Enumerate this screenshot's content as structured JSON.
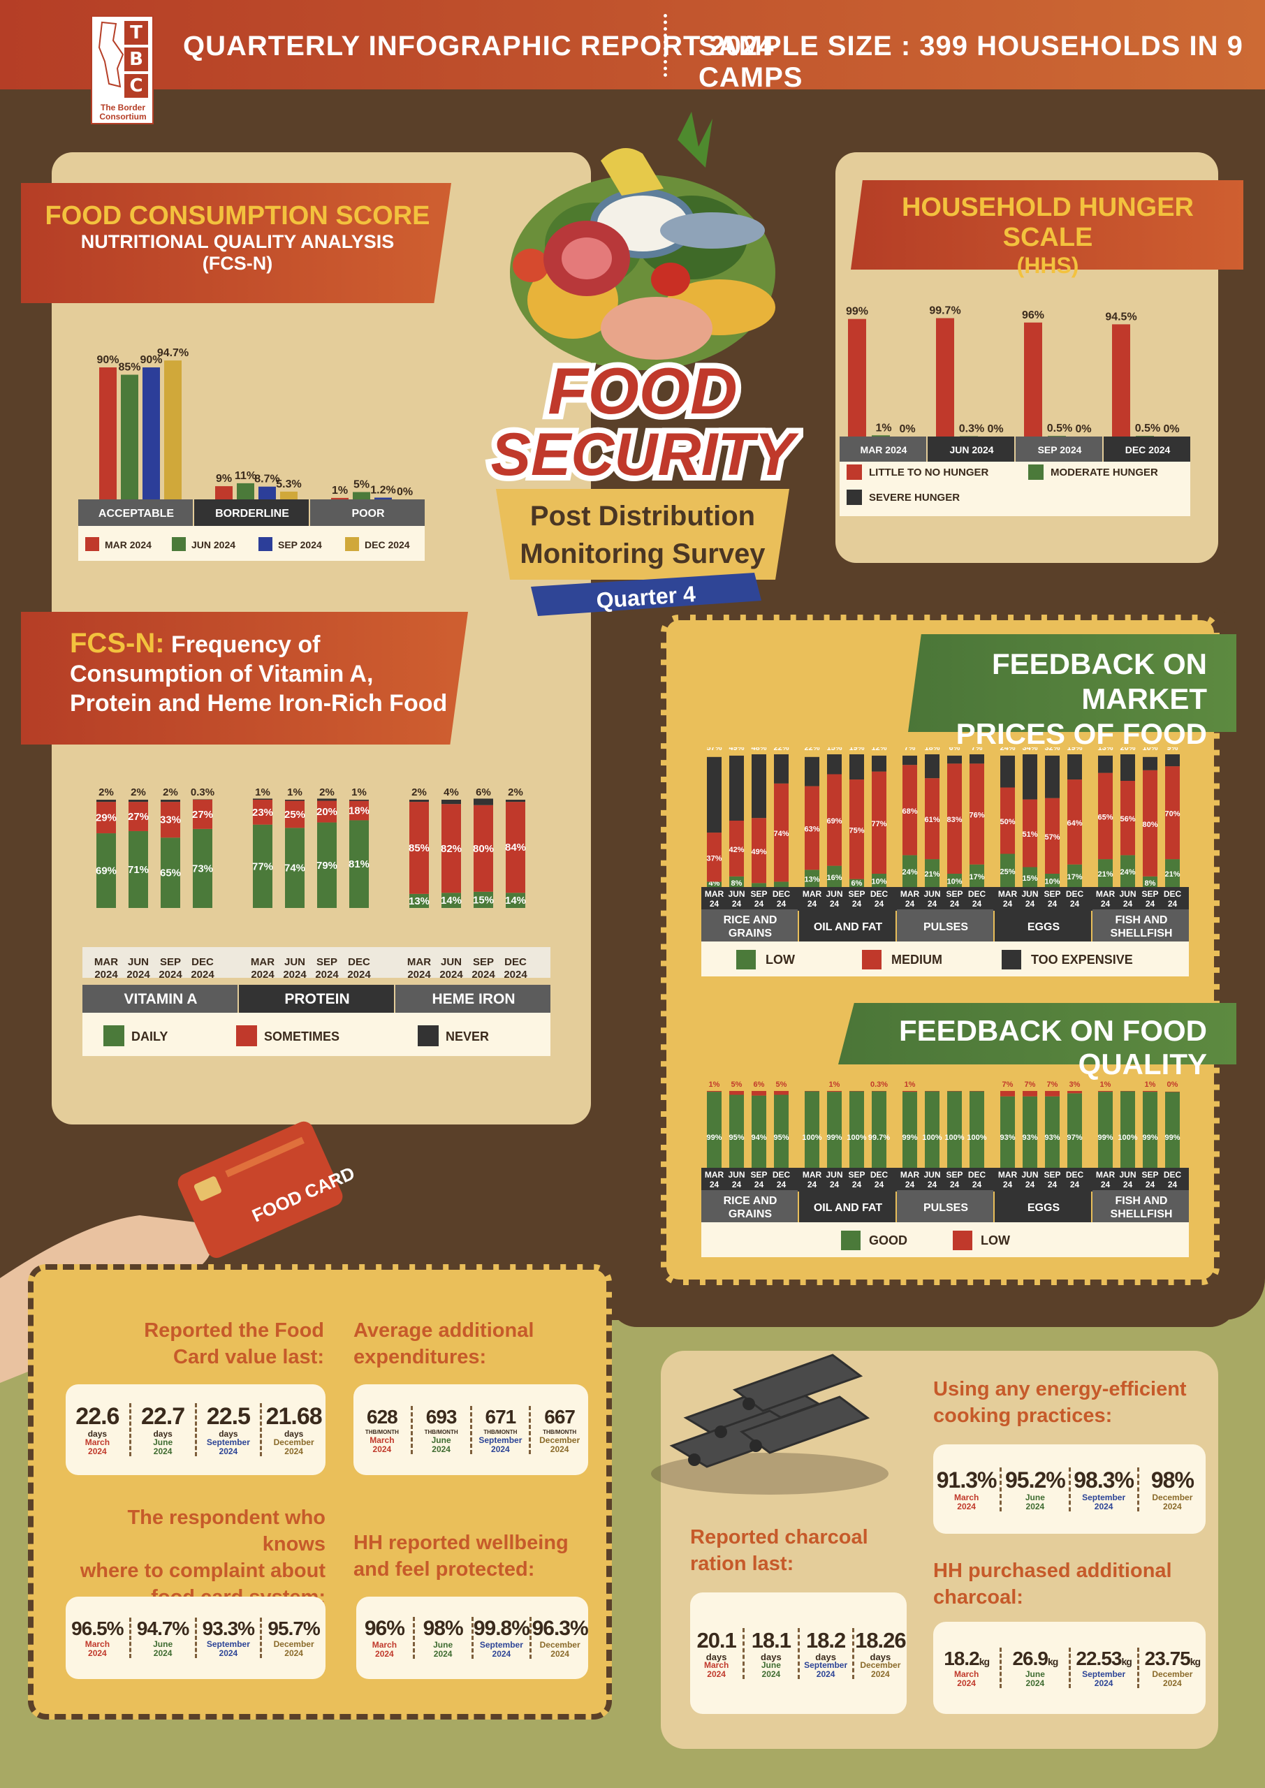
{
  "header": {
    "title": "QUARTERLY INFOGRAPHIC REPORT 2024",
    "sample": "SAMPLE SIZE : 399 HOUSEHOLDS IN 9 CAMPS",
    "logo_letters": [
      "T",
      "B",
      "C"
    ],
    "logo_name": "The Border Consortium"
  },
  "center": {
    "title1": "FOOD",
    "title2": "SECURITY",
    "subtitle1": "Post Distribution",
    "subtitle2": "Monitoring Survey",
    "quarter": "Quarter 4"
  },
  "fcs": {
    "title": "FOOD CONSUMPTION SCORE",
    "sub1": "NUTRITIONAL QUALITY ANALYSIS",
    "sub2": "(FCS-N)"
  },
  "hhs": {
    "title": "HOUSEHOLD HUNGER SCALE",
    "sub": "(HHS)"
  },
  "fcsn": {
    "t1": "FCS-N:",
    "t2": "Frequency of",
    "t3": "Consumption of Vitamin A,",
    "t4": "Protein and Heme Iron-Rich Food"
  },
  "market": {
    "t1": "FEEDBACK ON MARKET",
    "t2": "PRICES OF FOOD"
  },
  "quality": {
    "t1": "FEEDBACK ON FOOD QUALITY"
  },
  "food_card_label": "FOOD CARD",
  "chart_data": [
    {
      "id": "fcs",
      "type": "bar",
      "categories": [
        "ACCEPTABLE",
        "BORDERLINE",
        "POOR"
      ],
      "series": [
        {
          "name": "MAR 2024",
          "color": "#c0392b",
          "values": [
            90,
            9,
            1
          ]
        },
        {
          "name": "JUN 2024",
          "color": "#4b7a3a",
          "values": [
            85,
            11,
            5
          ]
        },
        {
          "name": "SEP 2024",
          "color": "#2c3e99",
          "values": [
            90,
            8.7,
            1.2
          ]
        },
        {
          "name": "DEC 2024",
          "color": "#d0a83a",
          "values": [
            94.7,
            5.3,
            0
          ]
        }
      ],
      "labels": [
        [
          "90%",
          "85%",
          "90%",
          "94.7%"
        ],
        [
          "9%",
          "11%",
          "8.7%",
          "5.3%"
        ],
        [
          "1%",
          "5%",
          "1.2%",
          "0%"
        ]
      ],
      "ylim": [
        0,
        100
      ]
    },
    {
      "id": "hhs",
      "type": "bar",
      "categories": [
        "MAR 2024",
        "JUN 2024",
        "SEP 2024",
        "DEC 2024"
      ],
      "series": [
        {
          "name": "LITTLE TO NO HUNGER",
          "color": "#c0392b",
          "values": [
            99,
            99.7,
            96,
            94.5
          ]
        },
        {
          "name": "MODERATE HUNGER",
          "color": "#4b7a3a",
          "values": [
            1,
            0.3,
            0.5,
            0.5
          ]
        },
        {
          "name": "SEVERE HUNGER",
          "color": "#333333",
          "values": [
            0,
            0,
            0,
            0
          ]
        }
      ],
      "labels": [
        [
          "99%",
          "1%",
          "0%"
        ],
        [
          "99.7%",
          "0.3%",
          "0%"
        ],
        [
          "96%",
          "0.5%",
          "0%"
        ],
        [
          "94.5%",
          "0.5%",
          "0%"
        ]
      ],
      "ylim": [
        0,
        100
      ]
    },
    {
      "id": "fcsn",
      "type": "bar",
      "stacked": true,
      "groups": [
        "VITAMIN A",
        "PROTEIN",
        "HEME IRON"
      ],
      "periods": [
        [
          "MAR",
          "2024"
        ],
        [
          "JUN",
          "2024"
        ],
        [
          "SEP",
          "2024"
        ],
        [
          "DEC",
          "2024"
        ]
      ],
      "series": [
        {
          "name": "DAILY",
          "color": "#4b7a3a"
        },
        {
          "name": "SOMETIMES",
          "color": "#c0392b"
        },
        {
          "name": "NEVER",
          "color": "#333333"
        }
      ],
      "values": [
        [
          [
            69,
            29,
            2
          ],
          [
            71,
            27,
            2
          ],
          [
            65,
            33,
            2
          ],
          [
            73,
            27,
            0.3
          ]
        ],
        [
          [
            77,
            23,
            1
          ],
          [
            74,
            25,
            1
          ],
          [
            79,
            20,
            2
          ],
          [
            81,
            18,
            1
          ]
        ],
        [
          [
            13,
            85,
            2
          ],
          [
            14,
            82,
            4
          ],
          [
            15,
            80,
            6
          ],
          [
            14,
            84,
            2
          ]
        ]
      ],
      "labels": [
        [
          [
            "69%",
            "29%",
            "2%"
          ],
          [
            "71%",
            "27%",
            "2%"
          ],
          [
            "65%",
            "33%",
            "2%"
          ],
          [
            "73%",
            "27%",
            "0.3%"
          ]
        ],
        [
          [
            "77%",
            "23%",
            "1%"
          ],
          [
            "74%",
            "25%",
            "1%"
          ],
          [
            "79%",
            "20%",
            "2%"
          ],
          [
            "81%",
            "18%",
            "1%"
          ]
        ],
        [
          [
            "13%",
            "85%",
            "2%"
          ],
          [
            "14%",
            "82%",
            "4%"
          ],
          [
            "15%",
            "80%",
            "6%"
          ],
          [
            "14%",
            "84%",
            "2%"
          ]
        ]
      ]
    },
    {
      "id": "market",
      "type": "bar",
      "stacked": true,
      "groups": [
        "RICE AND GRAINS",
        "OIL AND FAT",
        "PULSES",
        "EGGS",
        "FISH AND SHELLFISH"
      ],
      "periods": [
        [
          "MAR",
          "24"
        ],
        [
          "JUN",
          "24"
        ],
        [
          "SEP",
          "24"
        ],
        [
          "DEC",
          "24"
        ]
      ],
      "series": [
        {
          "name": "LOW",
          "color": "#4b7a3a"
        },
        {
          "name": "MEDIUM",
          "color": "#c0392b"
        },
        {
          "name": "TOO EXPENSIVE",
          "color": "#333333"
        }
      ],
      "values": [
        [
          [
            4,
            37,
            57
          ],
          [
            8,
            42,
            49
          ],
          [
            3,
            49,
            48
          ],
          [
            4,
            74,
            22
          ]
        ],
        [
          [
            13,
            63,
            22
          ],
          [
            16,
            69,
            15
          ],
          [
            6,
            75,
            19
          ],
          [
            10,
            77,
            12
          ]
        ],
        [
          [
            24,
            68,
            7
          ],
          [
            21,
            61,
            18
          ],
          [
            10,
            83,
            6
          ],
          [
            17,
            76,
            7
          ]
        ],
        [
          [
            25,
            50,
            24
          ],
          [
            15,
            51,
            34
          ],
          [
            10,
            57,
            32
          ],
          [
            17,
            64,
            19
          ]
        ],
        [
          [
            21,
            65,
            13
          ],
          [
            24,
            56,
            20
          ],
          [
            8,
            80,
            10
          ],
          [
            21,
            70,
            9
          ]
        ]
      ],
      "labels": [
        [
          [
            "4%",
            "37%",
            "57%"
          ],
          [
            "8%",
            "42%",
            "49%"
          ],
          [
            "",
            "49%",
            "48%"
          ],
          [
            "",
            "74%",
            "22%"
          ]
        ],
        [
          [
            "13%",
            "63%",
            "22%"
          ],
          [
            "16%",
            "69%",
            "15%"
          ],
          [
            "6%",
            "75%",
            "19%"
          ],
          [
            "10%",
            "77%",
            "12%"
          ]
        ],
        [
          [
            "24%",
            "68%",
            "7%"
          ],
          [
            "21%",
            "61%",
            "18%"
          ],
          [
            "10%",
            "83%",
            "6%"
          ],
          [
            "17%",
            "76%",
            "7%"
          ]
        ],
        [
          [
            "25%",
            "50%",
            "24%"
          ],
          [
            "15%",
            "51%",
            "34%"
          ],
          [
            "10%",
            "57%",
            "32%"
          ],
          [
            "17%",
            "64%",
            "19%"
          ]
        ],
        [
          [
            "21%",
            "65%",
            "13%"
          ],
          [
            "24%",
            "56%",
            "20%"
          ],
          [
            "8%",
            "80%",
            "10%"
          ],
          [
            "21%",
            "70%",
            "9%"
          ]
        ]
      ]
    },
    {
      "id": "quality",
      "type": "bar",
      "stacked": true,
      "groups": [
        "RICE AND GRAINS",
        "OIL AND FAT",
        "PULSES",
        "EGGS",
        "FISH AND SHELLFISH"
      ],
      "periods": [
        [
          "MAR",
          "24"
        ],
        [
          "JUN",
          "24"
        ],
        [
          "SEP",
          "24"
        ],
        [
          "DEC",
          "24"
        ]
      ],
      "series": [
        {
          "name": "GOOD",
          "color": "#4b7a3a"
        },
        {
          "name": "LOW",
          "color": "#c0392b"
        }
      ],
      "values": [
        [
          [
            99,
            1
          ],
          [
            95,
            5
          ],
          [
            94,
            6
          ],
          [
            95,
            5
          ]
        ],
        [
          [
            100,
            0
          ],
          [
            99,
            1
          ],
          [
            100,
            0
          ],
          [
            99.7,
            0.3
          ]
        ],
        [
          [
            99,
            1
          ],
          [
            100,
            0
          ],
          [
            100,
            0
          ],
          [
            100,
            0
          ]
        ],
        [
          [
            93,
            7
          ],
          [
            93,
            7
          ],
          [
            93,
            7
          ],
          [
            97,
            3
          ]
        ],
        [
          [
            99,
            1
          ],
          [
            100,
            0
          ],
          [
            99,
            1
          ],
          [
            99,
            0
          ]
        ]
      ],
      "labels": [
        [
          [
            "99%",
            "1%"
          ],
          [
            "95%",
            "5%"
          ],
          [
            "94%",
            "6%"
          ],
          [
            "95%",
            "5%"
          ]
        ],
        [
          [
            "100%",
            ""
          ],
          [
            "99%",
            "1%"
          ],
          [
            "100%",
            ""
          ],
          [
            "99.7%",
            "0.3%"
          ]
        ],
        [
          [
            "99%",
            "1%"
          ],
          [
            "100%",
            ""
          ],
          [
            "100%",
            ""
          ],
          [
            "100%",
            ""
          ]
        ],
        [
          [
            "93%",
            "7%"
          ],
          [
            "93%",
            "7%"
          ],
          [
            "93%",
            "7%"
          ],
          [
            "97%",
            "3%"
          ]
        ],
        [
          [
            "99%",
            "1%"
          ],
          [
            "100%",
            ""
          ],
          [
            "99%",
            "1%"
          ],
          [
            "99%",
            "0%"
          ]
        ]
      ]
    }
  ],
  "months": [
    "March",
    "June",
    "September",
    "December"
  ],
  "year": "2024",
  "stats": {
    "foodcard": {
      "q1": "Reported the Food",
      "q2": "Card value last:",
      "values": [
        "22.6",
        "22.7",
        "22.5",
        "21.68"
      ],
      "unit": "days"
    },
    "expend": {
      "q1": "Average additional",
      "q2": "expenditures:",
      "values": [
        "628",
        "693",
        "671",
        "667"
      ],
      "unit": "THB/MONTH"
    },
    "complaint": {
      "q1": "The respondent who knows",
      "q2": "where to complaint about",
      "q3": "food card system:",
      "values": [
        "96.5%",
        "94.7%",
        "93.3%",
        "95.7%"
      ]
    },
    "wellbeing": {
      "q1": "HH reported wellbeing",
      "q2": "and feel protected:",
      "values": [
        "96%",
        "98%",
        "99.8%",
        "96.3%"
      ]
    },
    "energy": {
      "q1": "Using any energy-efficient",
      "q2": "cooking practices:",
      "values": [
        "91.3%",
        "95.2%",
        "98.3%",
        "98%"
      ]
    },
    "charcoal": {
      "q1": "Reported charcoal",
      "q2": "ration last:",
      "values": [
        "20.1",
        "18.1",
        "18.2",
        "18.26"
      ],
      "unit": "days"
    },
    "purchased": {
      "q1": "HH purchased additional",
      "q2": "charcoal:",
      "values": [
        "18.2",
        "26.9",
        "22.53",
        "23.75"
      ],
      "unit": "kg"
    }
  }
}
